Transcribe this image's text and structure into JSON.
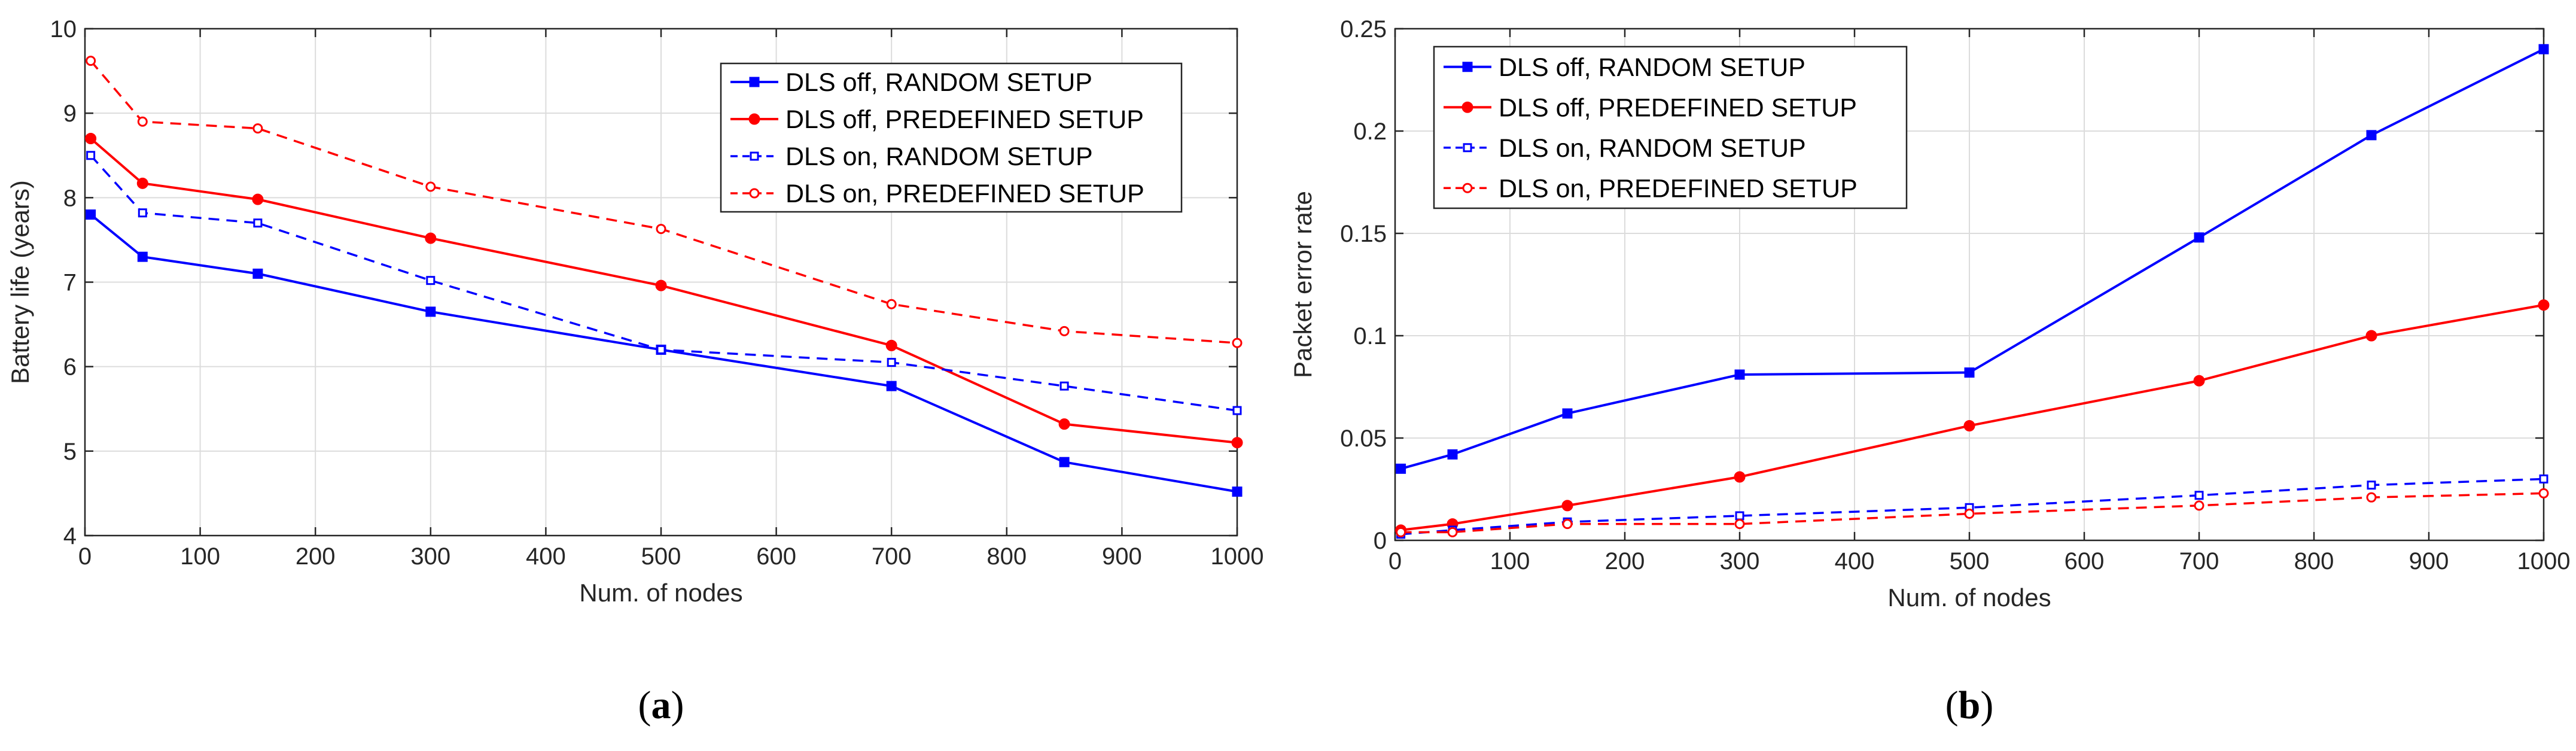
{
  "chart_data": [
    {
      "type": "line",
      "caption": "(a)",
      "xlabel": "Num. of nodes",
      "ylabel": "Battery life (years)",
      "xlim": [
        0,
        1000
      ],
      "ylim": [
        4,
        10
      ],
      "xticks": [
        0,
        100,
        200,
        300,
        400,
        500,
        600,
        700,
        800,
        900,
        1000
      ],
      "yticks": [
        4,
        5,
        6,
        7,
        8,
        9,
        10
      ],
      "grid": true,
      "legend_position": "top-right",
      "series": [
        {
          "name": "DLS off, RANDOM SETUP",
          "color": "#0000ff",
          "linestyle": "solid",
          "marker": "square",
          "x": [
            5,
            50,
            150,
            300,
            500,
            700,
            850,
            1000
          ],
          "y": [
            7.8,
            7.3,
            7.1,
            6.65,
            6.2,
            5.77,
            4.87,
            4.52
          ]
        },
        {
          "name": "DLS off, PREDEFINED SETUP",
          "color": "#ff0000",
          "linestyle": "solid",
          "marker": "circle",
          "x": [
            5,
            50,
            150,
            300,
            500,
            700,
            850,
            1000
          ],
          "y": [
            8.7,
            8.17,
            7.98,
            7.52,
            6.96,
            6.25,
            5.32,
            5.1
          ]
        },
        {
          "name": "DLS on, RANDOM SETUP",
          "color": "#0000ff",
          "linestyle": "dashed",
          "marker": "square",
          "x": [
            5,
            50,
            150,
            300,
            500,
            700,
            850,
            1000
          ],
          "y": [
            8.5,
            7.82,
            7.7,
            7.02,
            6.2,
            6.05,
            5.77,
            5.48
          ]
        },
        {
          "name": "DLS on, PREDEFINED SETUP",
          "color": "#ff0000",
          "linestyle": "dashed",
          "marker": "circle",
          "x": [
            5,
            50,
            150,
            300,
            500,
            700,
            850,
            1000
          ],
          "y": [
            9.62,
            8.9,
            8.82,
            8.13,
            7.63,
            6.74,
            6.42,
            6.28
          ]
        }
      ]
    },
    {
      "type": "line",
      "caption": "(b)",
      "xlabel": "Num. of nodes",
      "ylabel": "Packet error rate",
      "xlim": [
        0,
        1000
      ],
      "ylim": [
        0,
        0.25
      ],
      "xticks": [
        0,
        100,
        200,
        300,
        400,
        500,
        600,
        700,
        800,
        900,
        1000
      ],
      "yticks": [
        0,
        0.05,
        0.1,
        0.15,
        0.2,
        0.25
      ],
      "grid": true,
      "legend_position": "top-left",
      "series": [
        {
          "name": "DLS off, RANDOM SETUP",
          "color": "#0000ff",
          "linestyle": "solid",
          "marker": "square",
          "x": [
            5,
            50,
            150,
            300,
            500,
            700,
            850,
            1000
          ],
          "y": [
            0.035,
            0.042,
            0.062,
            0.081,
            0.082,
            0.148,
            0.198,
            0.24
          ]
        },
        {
          "name": "DLS off, PREDEFINED SETUP",
          "color": "#ff0000",
          "linestyle": "solid",
          "marker": "circle",
          "x": [
            5,
            50,
            150,
            300,
            500,
            700,
            850,
            1000
          ],
          "y": [
            0.005,
            0.008,
            0.017,
            0.031,
            0.056,
            0.078,
            0.1,
            0.115
          ]
        },
        {
          "name": "DLS on, RANDOM SETUP",
          "color": "#0000ff",
          "linestyle": "dashed",
          "marker": "square",
          "x": [
            5,
            50,
            150,
            300,
            500,
            700,
            850,
            1000
          ],
          "y": [
            0.003,
            0.005,
            0.009,
            0.012,
            0.016,
            0.022,
            0.027,
            0.03
          ]
        },
        {
          "name": "DLS on, PREDEFINED SETUP",
          "color": "#ff0000",
          "linestyle": "dashed",
          "marker": "circle",
          "x": [
            5,
            50,
            150,
            300,
            500,
            700,
            850,
            1000
          ],
          "y": [
            0.004,
            0.004,
            0.008,
            0.008,
            0.013,
            0.017,
            0.021,
            0.023
          ]
        }
      ]
    }
  ]
}
